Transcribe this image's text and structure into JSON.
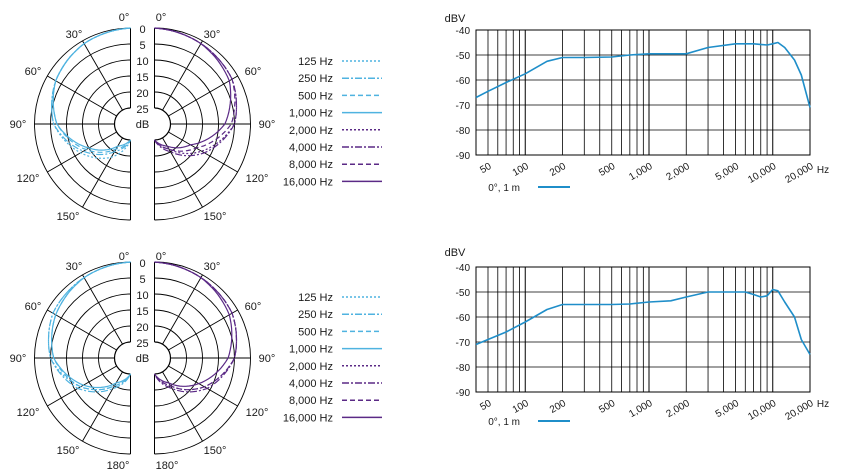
{
  "colors": {
    "blue": "#4fb3e0",
    "purple": "#5b2a86",
    "response": "#1f8ec9",
    "grid": "#000000"
  },
  "polar": {
    "angle_labels_left": [
      "0°",
      "30°",
      "60°",
      "90°",
      "120°",
      "150°",
      "180°"
    ],
    "angle_labels_right": [
      "0°",
      "30°",
      "60°",
      "90°",
      "120°",
      "150°",
      "180°"
    ],
    "ring_labels": [
      "0",
      "5",
      "10",
      "15",
      "20",
      "25"
    ],
    "db_label": "dB"
  },
  "legend": [
    {
      "label": "125 Hz",
      "color": "blue",
      "dash": "2,2"
    },
    {
      "label": "250 Hz",
      "color": "blue",
      "dash": "7,2,2,2"
    },
    {
      "label": "500 Hz",
      "color": "blue",
      "dash": "5,3"
    },
    {
      "label": "1,000 Hz",
      "color": "blue",
      "dash": ""
    },
    {
      "label": "2,000 Hz",
      "color": "purple",
      "dash": "2,2"
    },
    {
      "label": "4,000 Hz",
      "color": "purple",
      "dash": "7,2,2,2"
    },
    {
      "label": "8,000 Hz",
      "color": "purple",
      "dash": "5,3"
    },
    {
      "label": "16,000 Hz",
      "color": "purple",
      "dash": ""
    }
  ],
  "chart_data": [
    {
      "type": "polar",
      "unit": "dB",
      "series": [
        {
          "name": "125 Hz",
          "angles": [
            0,
            30,
            60,
            90,
            120,
            150,
            180
          ],
          "values": [
            0,
            1,
            3,
            6,
            12,
            18,
            25
          ]
        },
        {
          "name": "250 Hz",
          "angles": [
            0,
            30,
            60,
            90,
            120,
            150,
            180
          ],
          "values": [
            0,
            1,
            3,
            6,
            13,
            20,
            25
          ]
        },
        {
          "name": "500 Hz",
          "angles": [
            0,
            30,
            60,
            90,
            120,
            150,
            180
          ],
          "values": [
            0,
            1,
            3,
            7,
            14,
            21,
            25
          ]
        },
        {
          "name": "1,000 Hz",
          "angles": [
            0,
            30,
            60,
            90,
            120,
            150,
            180
          ],
          "values": [
            0,
            1,
            3,
            7,
            15,
            22,
            25
          ]
        },
        {
          "name": "2,000 Hz",
          "angles": [
            0,
            30,
            60,
            90,
            120,
            150,
            180
          ],
          "values": [
            0,
            1,
            2,
            5,
            13,
            21,
            25
          ]
        },
        {
          "name": "4,000 Hz",
          "angles": [
            0,
            30,
            60,
            90,
            120,
            150,
            180
          ],
          "values": [
            0,
            1,
            2,
            5,
            12,
            20,
            25
          ]
        },
        {
          "name": "8,000 Hz",
          "angles": [
            0,
            30,
            60,
            90,
            120,
            150,
            180
          ],
          "values": [
            0,
            1,
            2,
            6,
            15,
            21,
            25
          ]
        },
        {
          "name": "16,000 Hz",
          "angles": [
            0,
            30,
            60,
            90,
            120,
            150,
            180
          ],
          "values": [
            0,
            1,
            3,
            8,
            17,
            22,
            25
          ]
        }
      ]
    },
    {
      "type": "line",
      "xlabel": "Hz",
      "ylabel": "dBV",
      "xscale": "log",
      "xlim": [
        40,
        20000
      ],
      "ylim": [
        -90,
        -40
      ],
      "xticks": [
        50,
        100,
        200,
        500,
        1000,
        2000,
        5000,
        10000,
        20000
      ],
      "xticklabels": [
        "50",
        "100",
        "200",
        "500",
        "1,000",
        "2,000",
        "5,000",
        "10,000",
        "20,000"
      ],
      "yticks": [
        -40,
        -50,
        -60,
        -70,
        -80,
        -90
      ],
      "yticklabels": [
        "-40",
        "-50",
        "-60",
        "-70",
        "-80",
        "-90"
      ],
      "grid": true,
      "series": [
        {
          "name": "0°, 1 m",
          "x": [
            40,
            50,
            70,
            100,
            150,
            200,
            300,
            500,
            700,
            1000,
            1500,
            2000,
            3000,
            5000,
            7000,
            9000,
            10000,
            11000,
            12500,
            15000,
            17000,
            20000
          ],
          "y": [
            -67,
            -64.5,
            -61,
            -57.5,
            -52.5,
            -51,
            -51,
            -50.8,
            -50,
            -49.5,
            -49.5,
            -49.5,
            -47,
            -45.5,
            -45.5,
            -46,
            -45.5,
            -45,
            -47,
            -52,
            -58,
            -71
          ]
        }
      ]
    },
    {
      "type": "polar",
      "unit": "dB",
      "series": [
        {
          "name": "125 Hz",
          "angles": [
            0,
            30,
            60,
            90,
            120,
            150,
            180
          ],
          "values": [
            0,
            1,
            2,
            5,
            12,
            20,
            25
          ]
        },
        {
          "name": "250 Hz",
          "angles": [
            0,
            30,
            60,
            90,
            120,
            150,
            180
          ],
          "values": [
            0,
            1,
            2,
            5,
            11,
            19,
            25
          ]
        },
        {
          "name": "500 Hz",
          "angles": [
            0,
            30,
            60,
            90,
            120,
            150,
            180
          ],
          "values": [
            0,
            1,
            3,
            6,
            12,
            20,
            25
          ]
        },
        {
          "name": "1,000 Hz",
          "angles": [
            0,
            30,
            60,
            90,
            120,
            150,
            180
          ],
          "values": [
            0,
            1,
            3,
            6,
            13,
            21,
            25
          ]
        },
        {
          "name": "2,000 Hz",
          "angles": [
            0,
            30,
            60,
            90,
            120,
            150,
            180
          ],
          "values": [
            0,
            1,
            2,
            5,
            12,
            20,
            25
          ]
        },
        {
          "name": "4,000 Hz",
          "angles": [
            0,
            30,
            60,
            90,
            120,
            150,
            180
          ],
          "values": [
            0,
            1,
            2,
            5,
            11,
            19,
            25
          ]
        },
        {
          "name": "8,000 Hz",
          "angles": [
            0,
            30,
            60,
            90,
            120,
            150,
            180
          ],
          "values": [
            0,
            1,
            2,
            5,
            12,
            20,
            25
          ]
        },
        {
          "name": "16,000 Hz",
          "angles": [
            0,
            30,
            60,
            90,
            120,
            150,
            180
          ],
          "values": [
            0,
            1,
            3,
            7,
            14,
            21,
            25
          ]
        }
      ]
    },
    {
      "type": "line",
      "xlabel": "Hz",
      "ylabel": "dBV",
      "xscale": "log",
      "xlim": [
        40,
        20000
      ],
      "ylim": [
        -90,
        -40
      ],
      "xticks": [
        50,
        100,
        200,
        500,
        1000,
        2000,
        5000,
        10000,
        20000
      ],
      "xticklabels": [
        "50",
        "100",
        "200",
        "500",
        "1,000",
        "2,000",
        "5,000",
        "10,000",
        "20,000"
      ],
      "yticks": [
        -40,
        -50,
        -60,
        -70,
        -80,
        -90
      ],
      "yticklabels": [
        "-40",
        "-50",
        "-60",
        "-70",
        "-80",
        "-90"
      ],
      "grid": true,
      "series": [
        {
          "name": "0°, 1 m",
          "x": [
            40,
            50,
            70,
            100,
            150,
            200,
            300,
            500,
            700,
            1000,
            1500,
            2000,
            3000,
            5000,
            6000,
            7000,
            8000,
            9000,
            10000,
            11000,
            12500,
            15000,
            17000,
            20000
          ],
          "y": [
            -71,
            -69,
            -66,
            -62,
            -57,
            -55,
            -55,
            -55,
            -54.8,
            -54,
            -53.5,
            -52,
            -50,
            -50,
            -50,
            -51,
            -52,
            -51.5,
            -49,
            -49.5,
            -54,
            -60,
            -69,
            -75
          ]
        }
      ]
    }
  ]
}
